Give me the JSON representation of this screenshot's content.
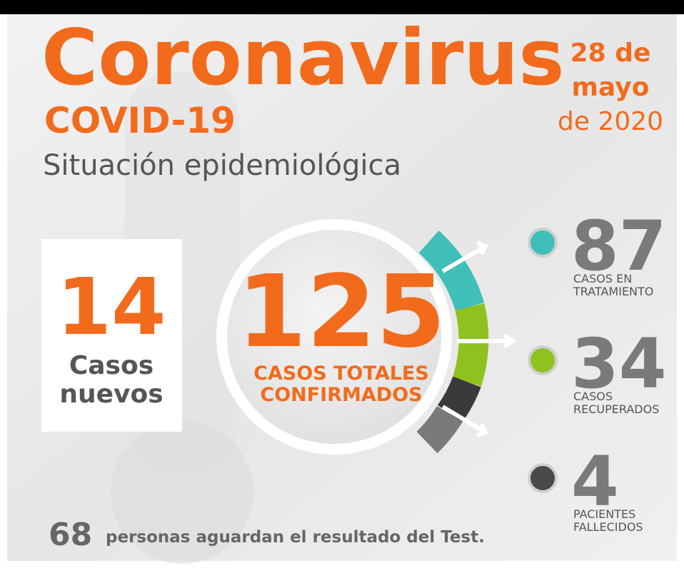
{
  "header": {
    "title": "Coronavirus",
    "subtitle": "COVID-19",
    "description": "Situación epidemiológica"
  },
  "date": {
    "lines": [
      "28 de",
      "mayo",
      "de 2020"
    ]
  },
  "new_cases": {
    "value": 14,
    "label": [
      "Casos",
      "nuevos"
    ]
  },
  "total": {
    "value": 125,
    "label": [
      "CASOS TOTALES",
      "CONFIRMADOS"
    ]
  },
  "stats": [
    {
      "value": 87,
      "label": [
        "CASOS EN",
        "TRATAMIENTO"
      ],
      "color": "#3fbfb8"
    },
    {
      "value": 34,
      "label": [
        "CASOS",
        "RECUPERADOS"
      ],
      "color": "#8fc11f"
    },
    {
      "value": 4,
      "label": [
        "PACIENTES",
        "FALLECIDOS"
      ],
      "color": "#4a4a4a"
    }
  ],
  "footer": {
    "value": 68,
    "text": "personas aguardan el resultado del Test."
  }
}
